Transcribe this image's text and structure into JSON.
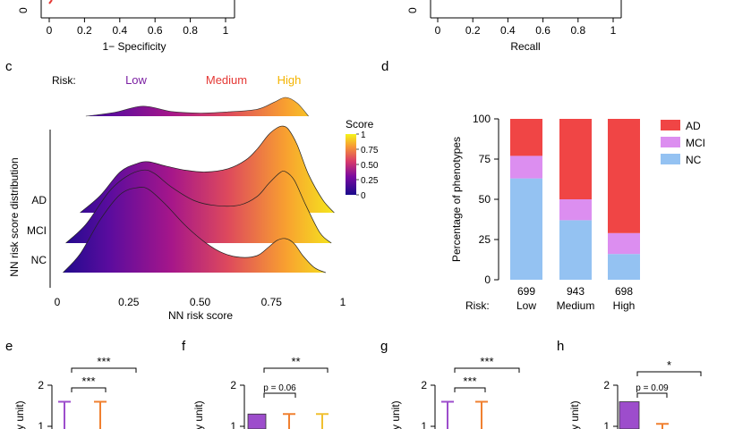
{
  "panel_labels": {
    "c": "c",
    "d": "d",
    "e": "e",
    "f": "f",
    "g": "g",
    "h": "h"
  },
  "top_panels": [
    {
      "xlabel": "1− Specificity",
      "x_ticks": [
        "0",
        "0.2",
        "0.4",
        "0.6",
        "0.8",
        "1"
      ],
      "y_ticks_visible": [
        "0"
      ]
    },
    {
      "xlabel": "Recall",
      "x_ticks": [
        "0",
        "0.2",
        "0.4",
        "0.6",
        "0.8",
        "1"
      ],
      "y_ticks_visible": [
        "0"
      ]
    }
  ],
  "colors": {
    "gradient": [
      "#1a0a8c",
      "#6a0da0",
      "#c0297a",
      "#ef6a3a",
      "#fbd52c",
      "#f4f41a"
    ],
    "ad": "#f04545",
    "mci": "#dc8ef0",
    "nc": "#94c2f2",
    "risk_low": "#7b1fa2",
    "risk_medium": "#e53935",
    "risk_high": "#f4b400",
    "orange": "#f08030",
    "purple": "#9d4dcc",
    "yellow": "#f0c030"
  },
  "chart_data": [
    {
      "id": "c",
      "type": "area",
      "title": "",
      "xlabel": "NN risk score",
      "ylabel": "NN risk score distribution",
      "xlim": [
        0,
        1
      ],
      "x_ticks": [
        "0",
        "0.25",
        "0.50",
        "0.75",
        "1"
      ],
      "risk_header": {
        "label": "Risk:",
        "low": "Low",
        "medium": "Medium",
        "high": "High"
      },
      "legend": {
        "title": "Score",
        "ticks": [
          "1",
          "0.75",
          "0.50",
          "0.25",
          "0"
        ]
      },
      "series": [
        {
          "name": "AD",
          "x": [
            0.08,
            0.15,
            0.22,
            0.28,
            0.32,
            0.38,
            0.45,
            0.52,
            0.6,
            0.66,
            0.7,
            0.74,
            0.77,
            0.79,
            0.81,
            0.84,
            0.88,
            0.93,
            0.97
          ],
          "y": [
            0,
            0.2,
            0.48,
            0.58,
            0.6,
            0.55,
            0.5,
            0.48,
            0.52,
            0.62,
            0.75,
            0.92,
            1.0,
            1.02,
            0.98,
            0.8,
            0.45,
            0.15,
            0
          ]
        },
        {
          "name": "MCI",
          "x": [
            0.03,
            0.1,
            0.18,
            0.24,
            0.3,
            0.34,
            0.4,
            0.48,
            0.56,
            0.64,
            0.7,
            0.74,
            0.78,
            0.8,
            0.83,
            0.87,
            0.92,
            0.96
          ],
          "y": [
            0,
            0.22,
            0.6,
            0.78,
            0.86,
            0.82,
            0.66,
            0.5,
            0.44,
            0.45,
            0.55,
            0.7,
            0.83,
            0.84,
            0.74,
            0.45,
            0.12,
            0
          ]
        },
        {
          "name": "NC",
          "x": [
            0.02,
            0.08,
            0.15,
            0.22,
            0.28,
            0.32,
            0.38,
            0.45,
            0.52,
            0.58,
            0.64,
            0.7,
            0.74,
            0.77,
            0.8,
            0.83,
            0.86,
            0.9,
            0.94
          ],
          "y": [
            0,
            0.22,
            0.62,
            0.92,
            1.0,
            0.98,
            0.8,
            0.55,
            0.35,
            0.23,
            0.18,
            0.2,
            0.3,
            0.38,
            0.4,
            0.34,
            0.2,
            0.06,
            0
          ]
        }
      ],
      "overall": {
        "x": [
          0.1,
          0.2,
          0.3,
          0.4,
          0.5,
          0.6,
          0.7,
          0.76,
          0.8,
          0.84,
          0.88
        ],
        "y": [
          0,
          0.12,
          0.32,
          0.15,
          0.1,
          0.14,
          0.22,
          0.45,
          0.6,
          0.42,
          0
        ]
      }
    },
    {
      "id": "d",
      "type": "bar",
      "title": "",
      "ylabel": "Percentage of phenotypes",
      "ylim": [
        0,
        100
      ],
      "y_ticks": [
        "100",
        "75",
        "50",
        "25",
        "0"
      ],
      "categories": [
        "Low",
        "Medium",
        "High"
      ],
      "counts": [
        "699",
        "943",
        "698"
      ],
      "risk_label": "Risk:",
      "series": [
        {
          "name": "NC",
          "values": [
            63,
            37,
            16
          ]
        },
        {
          "name": "MCI",
          "values": [
            14,
            13,
            13
          ]
        },
        {
          "name": "AD",
          "values": [
            23,
            50,
            71
          ]
        }
      ],
      "legend": [
        "AD",
        "MCI",
        "NC"
      ],
      "legend_position": "top-right"
    },
    {
      "id": "e",
      "type": "bar",
      "ylabel_partial": "ary unit)",
      "y_ticks": [
        "2",
        "1"
      ],
      "annotations": [
        "***",
        "***"
      ],
      "values": [
        1.5,
        1.5
      ]
    },
    {
      "id": "f",
      "type": "bar",
      "ylabel_partial": "ary unit)",
      "y_ticks": [
        "2",
        "1"
      ],
      "annotations": [
        "**",
        "p = 0.06"
      ],
      "values": [
        1.25,
        1.25,
        1.25
      ]
    },
    {
      "id": "g",
      "type": "bar",
      "ylabel_partial": "ary unit)",
      "y_ticks": [
        "2",
        "1"
      ],
      "annotations": [
        "***",
        "***"
      ],
      "values": [
        1.5,
        1.5
      ]
    },
    {
      "id": "h",
      "type": "bar",
      "ylabel_partial": "ary unit)",
      "y_ticks": [
        "2",
        "1"
      ],
      "annotations": [
        "*",
        "p = 0.09"
      ],
      "values": [
        1.5,
        1.05
      ]
    }
  ]
}
